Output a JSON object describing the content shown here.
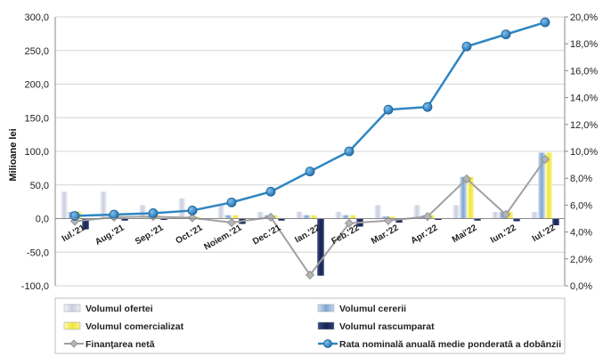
{
  "chart_data": {
    "type": "bar",
    "categories": [
      "Iul.'21",
      "Aug.'21",
      "Sep.'21",
      "Oct.'21",
      "Noiem.'21",
      "Dec.'21",
      "Ian.'22",
      "Feb.'22",
      "Mar.'22",
      "Apr.'22",
      "Mai'22",
      "Iun.'22",
      "Iul.'22"
    ],
    "ylabel": "Milioane lei",
    "ylim": [
      -100,
      300
    ],
    "yticks": [
      "300,0",
      "250,0",
      "200,0",
      "150,0",
      "100,0",
      "50,0",
      "0,0",
      "-50,0",
      "-100,0"
    ],
    "y2lim": [
      0,
      20
    ],
    "y2ticks": [
      "20,0%",
      "18,0%",
      "16,0%",
      "14,0%",
      "12,0%",
      "10,0%",
      "8,0%",
      "6,0%",
      "4,0%",
      "2,0%",
      "0,0%"
    ],
    "grid": true,
    "legend_position": "bottom",
    "series": [
      {
        "name": "Volumul ofertei",
        "type": "bar",
        "color": "#d9dce8",
        "values": [
          40,
          40,
          20,
          30,
          20,
          10,
          10,
          10,
          20,
          20,
          20,
          10,
          10
        ]
      },
      {
        "name": "Volumul cererii",
        "type": "bar",
        "color": "#8fb3da",
        "values": [
          10,
          5,
          5,
          3,
          5,
          5,
          5,
          5,
          3,
          5,
          62,
          10,
          98
        ]
      },
      {
        "name": "Volumul comercializat",
        "type": "bar",
        "color": "#f5f05a",
        "values": [
          10,
          5,
          5,
          3,
          5,
          5,
          5,
          5,
          3,
          5,
          62,
          10,
          98
        ]
      },
      {
        "name": "Volumul rascumparat",
        "type": "bar",
        "color": "#1f2a5c",
        "values": [
          -16,
          -3,
          -2,
          -2,
          -8,
          -3,
          -85,
          -12,
          -6,
          -2,
          -3,
          -4,
          -10
        ]
      },
      {
        "name": "Finanţarea netă",
        "type": "line",
        "axis": "left",
        "color": "#a8a8a8",
        "values": [
          -4,
          2,
          3,
          1,
          -6,
          2,
          -84,
          -7,
          -3,
          3,
          59,
          6,
          88
        ]
      },
      {
        "name": "Rata nominală anuală medie ponderată a dobânzii",
        "type": "line",
        "axis": "right",
        "color": "#2e86c1",
        "values": [
          5.2,
          5.3,
          5.4,
          5.6,
          6.2,
          7.0,
          8.5,
          10.0,
          13.1,
          13.3,
          17.8,
          18.7,
          19.6
        ]
      }
    ]
  }
}
